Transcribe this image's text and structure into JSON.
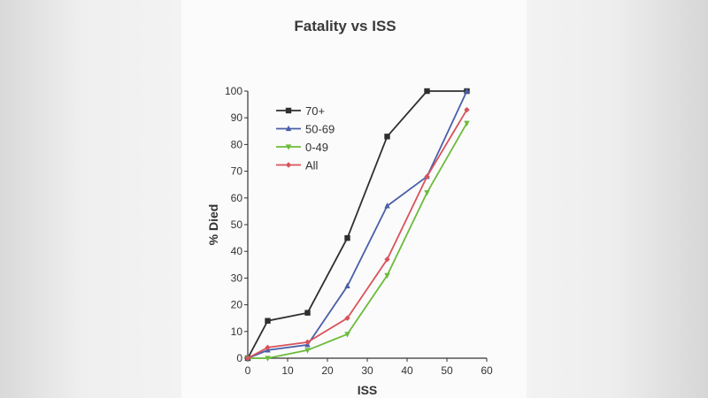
{
  "chart_data": {
    "type": "line",
    "title": "Fatality vs ISS",
    "xlabel": "ISS",
    "ylabel": "% Died",
    "xlim": [
      0,
      60
    ],
    "ylim": [
      0,
      100
    ],
    "xticks": [
      0,
      10,
      20,
      30,
      40,
      50,
      60
    ],
    "yticks": [
      0,
      10,
      20,
      30,
      40,
      50,
      60,
      70,
      80,
      90,
      100
    ],
    "grid": false,
    "legend_position": "top-left",
    "x": [
      0,
      5,
      15,
      25,
      35,
      45,
      55
    ],
    "series": [
      {
        "name": "70+",
        "marker": "square",
        "color": "#2f2f2f",
        "values": [
          0,
          14,
          17,
          45,
          83,
          100,
          100
        ]
      },
      {
        "name": "50-69",
        "marker": "triangle-up",
        "color": "#4a5fa8",
        "values": [
          0,
          3,
          5,
          27,
          57,
          68,
          100
        ]
      },
      {
        "name": "0-49",
        "marker": "triangle-down",
        "color": "#6cbb3c",
        "values": [
          0,
          0,
          3,
          9,
          31,
          62,
          88
        ]
      },
      {
        "name": "All",
        "marker": "diamond",
        "color": "#d9535b",
        "values": [
          0,
          4,
          6,
          15,
          37,
          68,
          93
        ]
      }
    ]
  }
}
